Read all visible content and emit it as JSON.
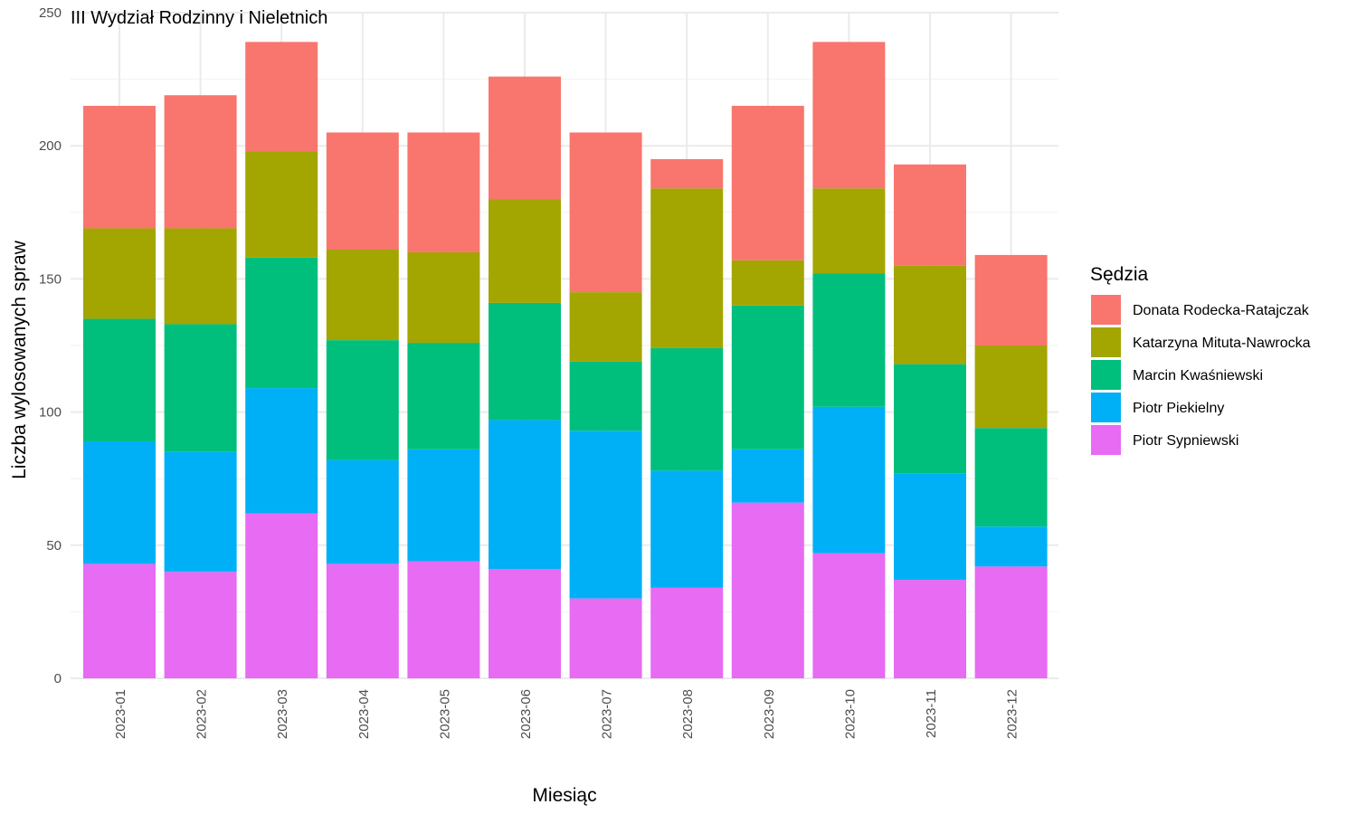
{
  "chart_data": {
    "type": "bar",
    "stacked": true,
    "title": "III Wydział Rodzinny i Nieletnich",
    "xlabel": "Miesiąc",
    "ylabel": "Liczba wylosowanych spraw",
    "ylim": [
      0,
      250
    ],
    "yticks": [
      0,
      50,
      100,
      150,
      200,
      250
    ],
    "grid": true,
    "legend": {
      "title": "Sędzia",
      "position": "right"
    },
    "categories": [
      "2023-01",
      "2023-02",
      "2023-03",
      "2023-04",
      "2023-05",
      "2023-06",
      "2023-07",
      "2023-08",
      "2023-09",
      "2023-10",
      "2023-11",
      "2023-12"
    ],
    "series": [
      {
        "name": "Donata Rodecka-Ratajczak",
        "color": "#F8766D",
        "values": [
          46,
          50,
          41,
          44,
          45,
          46,
          60,
          11,
          58,
          55,
          38,
          34
        ]
      },
      {
        "name": "Katarzyna Mituta-Nawrocka",
        "color": "#A3A500",
        "values": [
          34,
          36,
          40,
          34,
          34,
          39,
          26,
          60,
          17,
          32,
          37,
          31
        ]
      },
      {
        "name": "Marcin Kwaśniewski",
        "color": "#00BF7D",
        "values": [
          46,
          48,
          49,
          45,
          40,
          44,
          26,
          46,
          54,
          50,
          41,
          37
        ]
      },
      {
        "name": "Piotr Piekielny",
        "color": "#00B0F6",
        "values": [
          46,
          45,
          47,
          39,
          42,
          56,
          63,
          44,
          20,
          55,
          40,
          15
        ]
      },
      {
        "name": "Piotr Sypniewski",
        "color": "#E76BF3",
        "values": [
          43,
          40,
          62,
          43,
          44,
          41,
          30,
          34,
          66,
          47,
          37,
          42
        ]
      }
    ]
  }
}
